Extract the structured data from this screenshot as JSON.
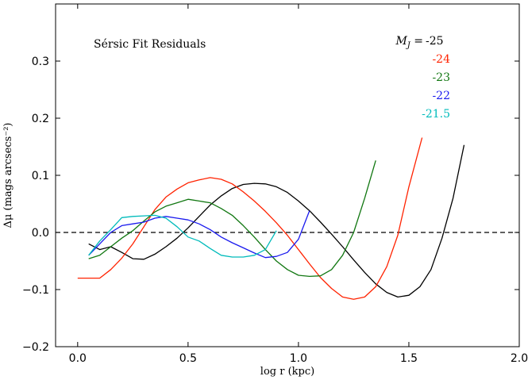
{
  "chart_data": {
    "type": "line",
    "title": "",
    "annotation": "Sérsic Fit Residuals",
    "xlabel": "log r (kpc)",
    "ylabel": "Δμ (mags arcsecs⁻²)",
    "xlim": [
      -0.1,
      2.0
    ],
    "ylim": [
      -0.2,
      0.4
    ],
    "xticks": [
      0.0,
      0.5,
      1.0,
      1.5,
      2.0
    ],
    "xtick_labels": [
      "0.0",
      "0.5",
      "1.0",
      "1.5",
      "2.0"
    ],
    "yticks": [
      -0.2,
      -0.1,
      0.0,
      0.1,
      0.2,
      0.3
    ],
    "ytick_labels": [
      "−0.2",
      "−0.1",
      "0.0",
      "0.1",
      "0.2",
      "0.3"
    ],
    "reference_line": {
      "y": 0.0,
      "style": "dashed",
      "color": "#000000"
    },
    "legend_title": "M_J =",
    "legend_position": "top-right",
    "series": [
      {
        "name": "-25",
        "label": "-25",
        "color": "#000000",
        "x": [
          0.05,
          0.1,
          0.15,
          0.2,
          0.25,
          0.3,
          0.35,
          0.4,
          0.45,
          0.5,
          0.55,
          0.6,
          0.65,
          0.7,
          0.75,
          0.8,
          0.85,
          0.9,
          0.95,
          1.0,
          1.05,
          1.1,
          1.15,
          1.2,
          1.25,
          1.3,
          1.35,
          1.4,
          1.45,
          1.5,
          1.55,
          1.6,
          1.65,
          1.7,
          1.75
        ],
        "y": [
          -0.02,
          -0.03,
          -0.025,
          -0.035,
          -0.046,
          -0.047,
          -0.038,
          -0.025,
          -0.01,
          0.008,
          0.028,
          0.048,
          0.064,
          0.077,
          0.084,
          0.086,
          0.085,
          0.08,
          0.07,
          0.055,
          0.038,
          0.018,
          -0.003,
          -0.025,
          -0.048,
          -0.07,
          -0.09,
          -0.105,
          -0.113,
          -0.11,
          -0.095,
          -0.065,
          -0.01,
          0.06,
          0.153
        ]
      },
      {
        "name": "-24",
        "label": "-24",
        "color": "#ff2200",
        "x": [
          0.0,
          0.05,
          0.1,
          0.15,
          0.2,
          0.25,
          0.3,
          0.35,
          0.4,
          0.45,
          0.5,
          0.55,
          0.6,
          0.65,
          0.7,
          0.75,
          0.8,
          0.85,
          0.9,
          0.95,
          1.0,
          1.05,
          1.1,
          1.15,
          1.2,
          1.25,
          1.3,
          1.35,
          1.4,
          1.45,
          1.5,
          1.56
        ],
        "y": [
          -0.08,
          -0.08,
          -0.08,
          -0.065,
          -0.045,
          -0.02,
          0.01,
          0.04,
          0.062,
          0.076,
          0.087,
          0.092,
          0.096,
          0.093,
          0.085,
          0.071,
          0.055,
          0.037,
          0.017,
          -0.005,
          -0.03,
          -0.055,
          -0.079,
          -0.098,
          -0.113,
          -0.117,
          -0.113,
          -0.095,
          -0.06,
          -0.005,
          0.08,
          0.166
        ]
      },
      {
        "name": "-23",
        "label": "-23",
        "color": "#117711",
        "x": [
          0.05,
          0.1,
          0.15,
          0.2,
          0.25,
          0.3,
          0.35,
          0.4,
          0.45,
          0.5,
          0.55,
          0.6,
          0.65,
          0.7,
          0.75,
          0.8,
          0.85,
          0.9,
          0.95,
          1.0,
          1.05,
          1.1,
          1.15,
          1.2,
          1.25,
          1.3,
          1.35
        ],
        "y": [
          -0.046,
          -0.04,
          -0.025,
          -0.01,
          0.003,
          0.02,
          0.036,
          0.046,
          0.052,
          0.058,
          0.055,
          0.052,
          0.042,
          0.03,
          0.012,
          -0.008,
          -0.03,
          -0.05,
          -0.065,
          -0.075,
          -0.077,
          -0.076,
          -0.065,
          -0.04,
          0.0,
          0.06,
          0.126
        ]
      },
      {
        "name": "-22",
        "label": "-22",
        "color": "#1a1aee",
        "x": [
          0.05,
          0.1,
          0.15,
          0.2,
          0.25,
          0.3,
          0.35,
          0.4,
          0.45,
          0.5,
          0.55,
          0.6,
          0.65,
          0.7,
          0.75,
          0.8,
          0.85,
          0.9,
          0.95,
          1.0,
          1.05
        ],
        "y": [
          -0.04,
          -0.02,
          0.0,
          0.012,
          0.015,
          0.018,
          0.025,
          0.028,
          0.025,
          0.022,
          0.015,
          0.005,
          -0.008,
          -0.018,
          -0.027,
          -0.036,
          -0.044,
          -0.042,
          -0.035,
          -0.012,
          0.038
        ]
      },
      {
        "name": "-21.5",
        "label": "-21.5",
        "color": "#00bbbb",
        "x": [
          0.05,
          0.1,
          0.15,
          0.2,
          0.25,
          0.3,
          0.35,
          0.4,
          0.45,
          0.5,
          0.55,
          0.6,
          0.65,
          0.7,
          0.75,
          0.8,
          0.85,
          0.9
        ],
        "y": [
          -0.04,
          -0.015,
          0.005,
          0.026,
          0.028,
          0.029,
          0.03,
          0.025,
          0.01,
          -0.008,
          -0.015,
          -0.028,
          -0.04,
          -0.043,
          -0.043,
          -0.04,
          -0.03,
          0.003
        ]
      }
    ]
  },
  "colors": {
    "axis": "#000000",
    "background": "#ffffff"
  }
}
